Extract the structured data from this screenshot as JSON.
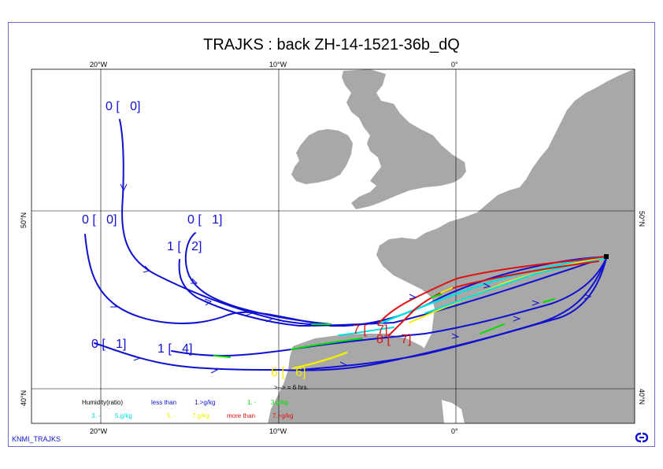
{
  "title": "TRAJKS : back ZH-14-1521-36b_dQ",
  "credit": "KNMI_TRAJKS",
  "axes": {
    "top_lon": [
      "20°W",
      "10°W",
      "0°"
    ],
    "bottom_lon": [
      "20°W",
      "10°W",
      "0°"
    ],
    "left_lat": [
      "50°N",
      "40°N"
    ],
    "right_lat": [
      "50°N",
      "40°N"
    ]
  },
  "time_note": ">--> = 6 hrs.",
  "legend": {
    "heading": "Humidity(ratio)",
    "entries": [
      {
        "text": "less than",
        "range": "1.>g/kg",
        "color": "#1010d0"
      },
      {
        "text": "1. -",
        "range": "3.g/kg",
        "color": "#00dd00"
      },
      {
        "text": "3. -",
        "range": "5.g/kg",
        "color": "#00e0e0"
      },
      {
        "text": "5. -",
        "range": "7.g/kg",
        "color": "#f0f000"
      },
      {
        "text": "more than",
        "range": "7.>g/kg",
        "color": "#e01010"
      }
    ]
  },
  "colors": {
    "land": "#a8a8a8",
    "grid": "#000000",
    "frame": "#6a6ad0",
    "blue": "#1010d0",
    "green": "#00dd00",
    "cyan": "#00e0e0",
    "yellow": "#f0f000",
    "red": "#e01010"
  },
  "start_labels": [
    {
      "text": "0 [   0]",
      "color": "#1010d0"
    },
    {
      "text": "0 [   0]",
      "color": "#1010d0"
    },
    {
      "text": "0 [   1]",
      "color": "#1010d0"
    },
    {
      "text": "1 [   2]",
      "color": "#1010d0"
    },
    {
      "text": "0 [   1]",
      "color": "#1010d0"
    },
    {
      "text": "1 [   4]",
      "color": "#1010d0"
    },
    {
      "text": "7 [   7]",
      "color": "#e01010"
    },
    {
      "text": "8 [   7]",
      "color": "#e01010"
    },
    {
      "text": "6 [   6]",
      "color": "#f0f000"
    }
  ],
  "icons": {
    "logo": "knmi-logo-icon",
    "origin": "origin-marker-icon"
  }
}
